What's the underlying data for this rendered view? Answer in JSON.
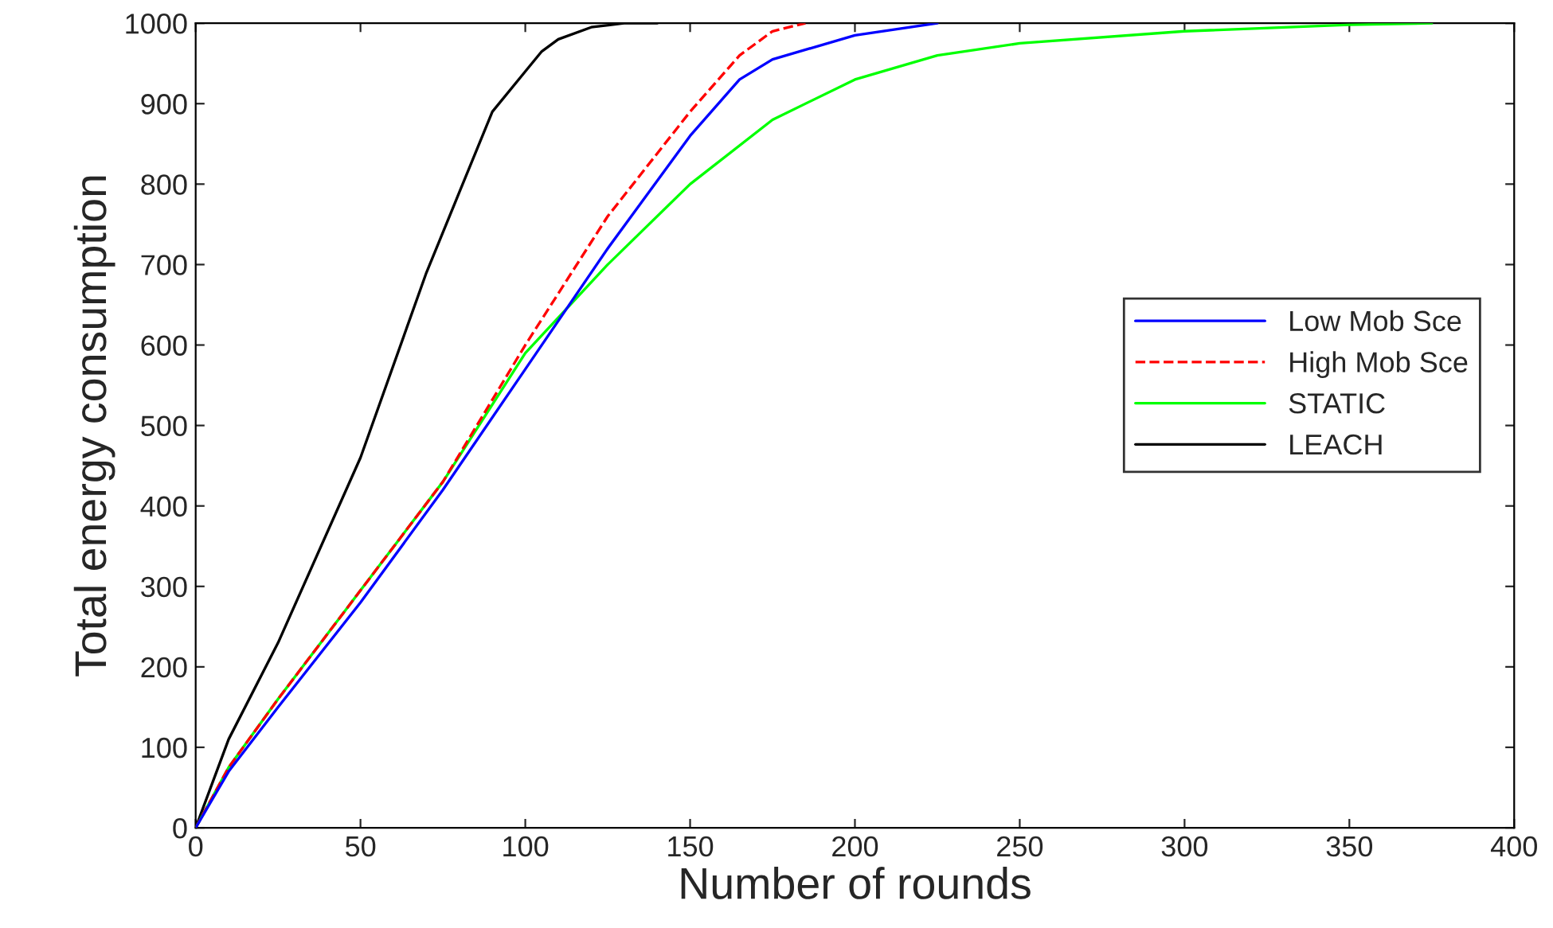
{
  "chart_data": {
    "type": "line",
    "xlabel": "Number of rounds",
    "ylabel": "Total energy consumption",
    "xlim": [
      0,
      400
    ],
    "ylim": [
      0,
      1000
    ],
    "xticks": [
      0,
      50,
      100,
      150,
      200,
      250,
      300,
      350,
      400
    ],
    "yticks": [
      0,
      100,
      200,
      300,
      400,
      500,
      600,
      700,
      800,
      900,
      1000
    ],
    "grid": false,
    "legend": "right",
    "marker": "none",
    "series": [
      {
        "name": "Low Mob Sce",
        "color": "#0000ff",
        "line_style": "solid",
        "x": [
          0,
          10,
          25,
          50,
          75,
          100,
          125,
          150,
          165,
          175,
          200,
          225
        ],
        "values": [
          0,
          70,
          150,
          280,
          420,
          570,
          720,
          860,
          930,
          955,
          985,
          1000
        ]
      },
      {
        "name": "High Mob Sce",
        "color": "#ff0000",
        "line_style": "dashed",
        "x": [
          0,
          10,
          25,
          50,
          75,
          100,
          125,
          150,
          165,
          175,
          185
        ],
        "values": [
          0,
          75,
          160,
          295,
          430,
          600,
          760,
          890,
          960,
          990,
          1000
        ]
      },
      {
        "name": "STATIC",
        "color": "#00ff00",
        "line_style": "solid",
        "x": [
          0,
          10,
          25,
          50,
          75,
          100,
          125,
          150,
          175,
          200,
          225,
          250,
          300,
          350,
          375
        ],
        "values": [
          0,
          75,
          160,
          295,
          430,
          590,
          700,
          800,
          880,
          930,
          960,
          975,
          990,
          998,
          1000
        ]
      },
      {
        "name": "LEACH",
        "color": "#000000",
        "line_style": "solid",
        "x": [
          0,
          10,
          25,
          50,
          70,
          80,
          90,
          100,
          105,
          110,
          120,
          130,
          140
        ],
        "values": [
          0,
          110,
          230,
          460,
          690,
          790,
          890,
          940,
          965,
          980,
          995,
          1000,
          1000
        ]
      }
    ]
  }
}
